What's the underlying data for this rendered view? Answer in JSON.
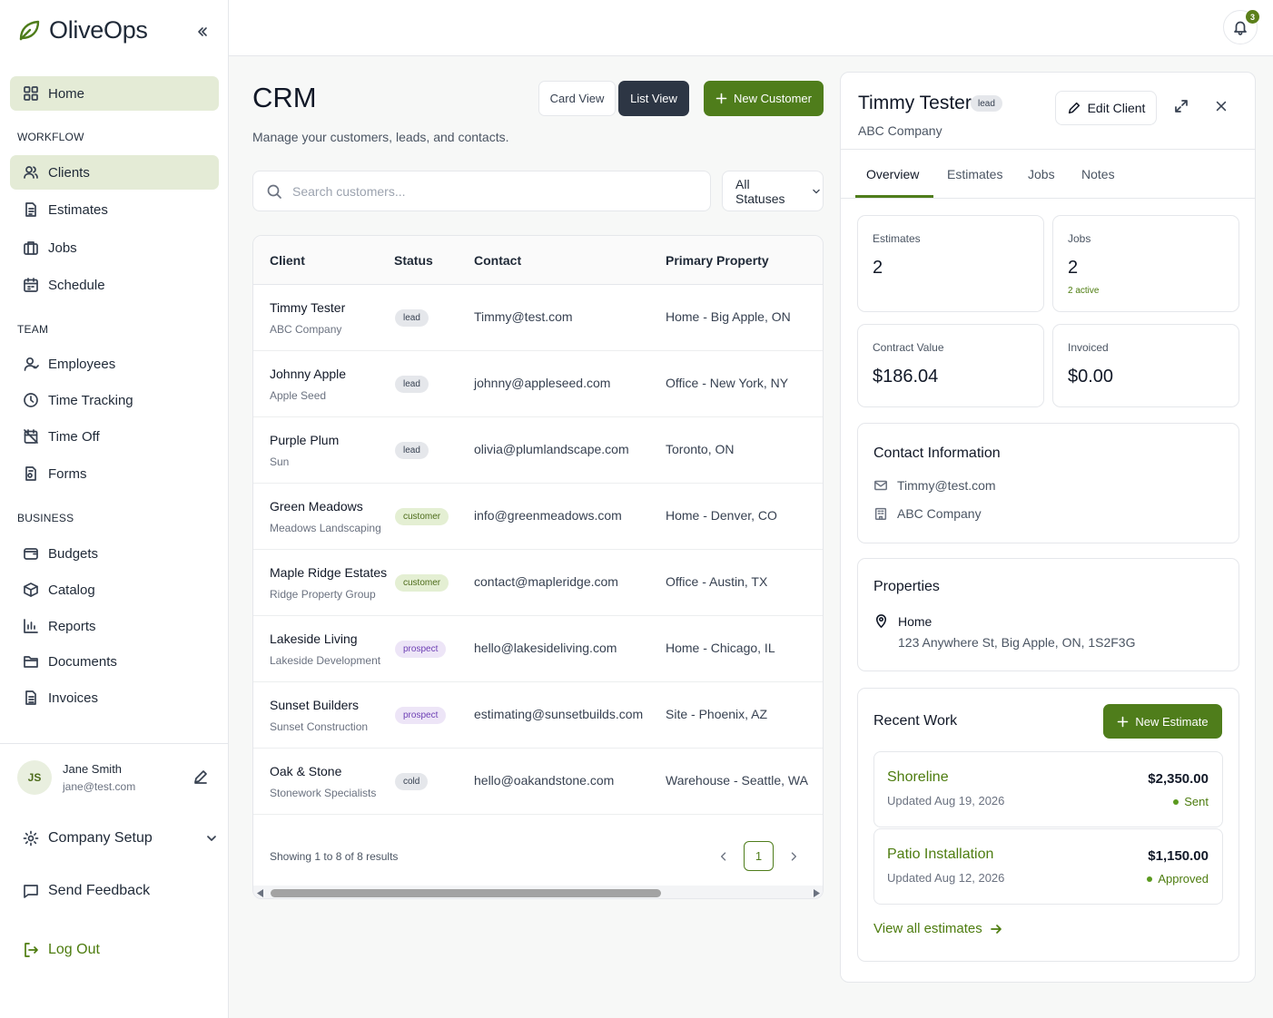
{
  "app": {
    "name": "OliveOps"
  },
  "sidebar": {
    "home": "Home",
    "sections": {
      "workflow": "WORKFLOW",
      "team": "TEAM",
      "business": "BUSINESS"
    },
    "workflow_items": [
      "Clients",
      "Estimates",
      "Jobs",
      "Schedule"
    ],
    "team_items": [
      "Employees",
      "Time Tracking",
      "Time Off",
      "Forms"
    ],
    "business_items": [
      "Budgets",
      "Catalog",
      "Reports",
      "Documents",
      "Invoices"
    ],
    "user": {
      "initials": "JS",
      "name": "Jane Smith",
      "email": "jane@test.com"
    },
    "company_setup": "Company Setup",
    "send_feedback": "Send Feedback",
    "log_out": "Log Out"
  },
  "topbar": {
    "notification_count": "3"
  },
  "main": {
    "title": "CRM",
    "subtitle": "Manage your customers, leads, and contacts.",
    "card_view": "Card View",
    "list_view": "List View",
    "new_customer": "New Customer",
    "search_placeholder": "Search customers...",
    "status_filter": "All Statuses"
  },
  "table": {
    "headers": [
      "Client",
      "Status",
      "Contact",
      "Primary Property"
    ],
    "rows": [
      {
        "name": "Timmy Tester",
        "company": "ABC Company",
        "status": "lead",
        "contact": "Timmy@test.com",
        "property": "Home - Big Apple, ON"
      },
      {
        "name": "Johnny Apple",
        "company": "Apple Seed",
        "status": "lead",
        "contact": "johnny@appleseed.com",
        "property": "Office - New York, NY"
      },
      {
        "name": "Purple Plum",
        "company": "Sun",
        "status": "lead",
        "contact": "olivia@plumlandscape.com",
        "property": "Toronto, ON"
      },
      {
        "name": "Green Meadows",
        "company": "Meadows Landscaping",
        "status": "customer",
        "contact": "info@greenmeadows.com",
        "property": "Home - Denver, CO"
      },
      {
        "name": "Maple Ridge Estates",
        "company": "Ridge Property Group",
        "status": "customer",
        "contact": "contact@mapleridge.com",
        "property": "Office - Austin, TX"
      },
      {
        "name": "Lakeside Living",
        "company": "Lakeside Development",
        "status": "prospect",
        "contact": "hello@lakesideliving.com",
        "property": "Home - Chicago, IL"
      },
      {
        "name": "Sunset Builders",
        "company": "Sunset Construction",
        "status": "prospect",
        "contact": "estimating@sunsetbuilds.com",
        "property": "Site - Phoenix, AZ"
      },
      {
        "name": "Oak & Stone",
        "company": "Stonework Specialists",
        "status": "cold",
        "contact": "hello@oakandstone.com",
        "property": "Warehouse - Seattle, WA"
      }
    ],
    "showing": "Showing 1 to 8 of 8 results",
    "current_page": "1"
  },
  "panel": {
    "name": "Timmy Tester",
    "badge": "lead",
    "company": "ABC Company",
    "edit": "Edit Client",
    "tabs": [
      "Overview",
      "Estimates",
      "Jobs",
      "Notes"
    ],
    "stats": {
      "estimates_label": "Estimates",
      "estimates_value": "2",
      "jobs_label": "Jobs",
      "jobs_value": "2",
      "jobs_sub": "2 active",
      "contract_label": "Contract Value",
      "contract_value": "$186.04",
      "invoiced_label": "Invoiced",
      "invoiced_value": "$0.00"
    },
    "contact_title": "Contact Information",
    "contact_email": "Timmy@test.com",
    "contact_company": "ABC Company",
    "properties_title": "Properties",
    "property_name": "Home",
    "property_address": "123 Anywhere St, Big Apple, ON, 1S2F3G",
    "recent_title": "Recent Work",
    "new_estimate": "New Estimate",
    "work": [
      {
        "title": "Shoreline",
        "date": "Updated Aug 19, 2026",
        "amount": "$2,350.00",
        "status": "Sent"
      },
      {
        "title": "Patio Installation",
        "date": "Updated Aug 12, 2026",
        "amount": "$1,150.00",
        "status": "Approved"
      }
    ],
    "view_all": "View all estimates"
  },
  "colors": {
    "brand": "#4f7d1b",
    "active_nav": "#e4ebd6",
    "dark_button": "#2d3644"
  }
}
